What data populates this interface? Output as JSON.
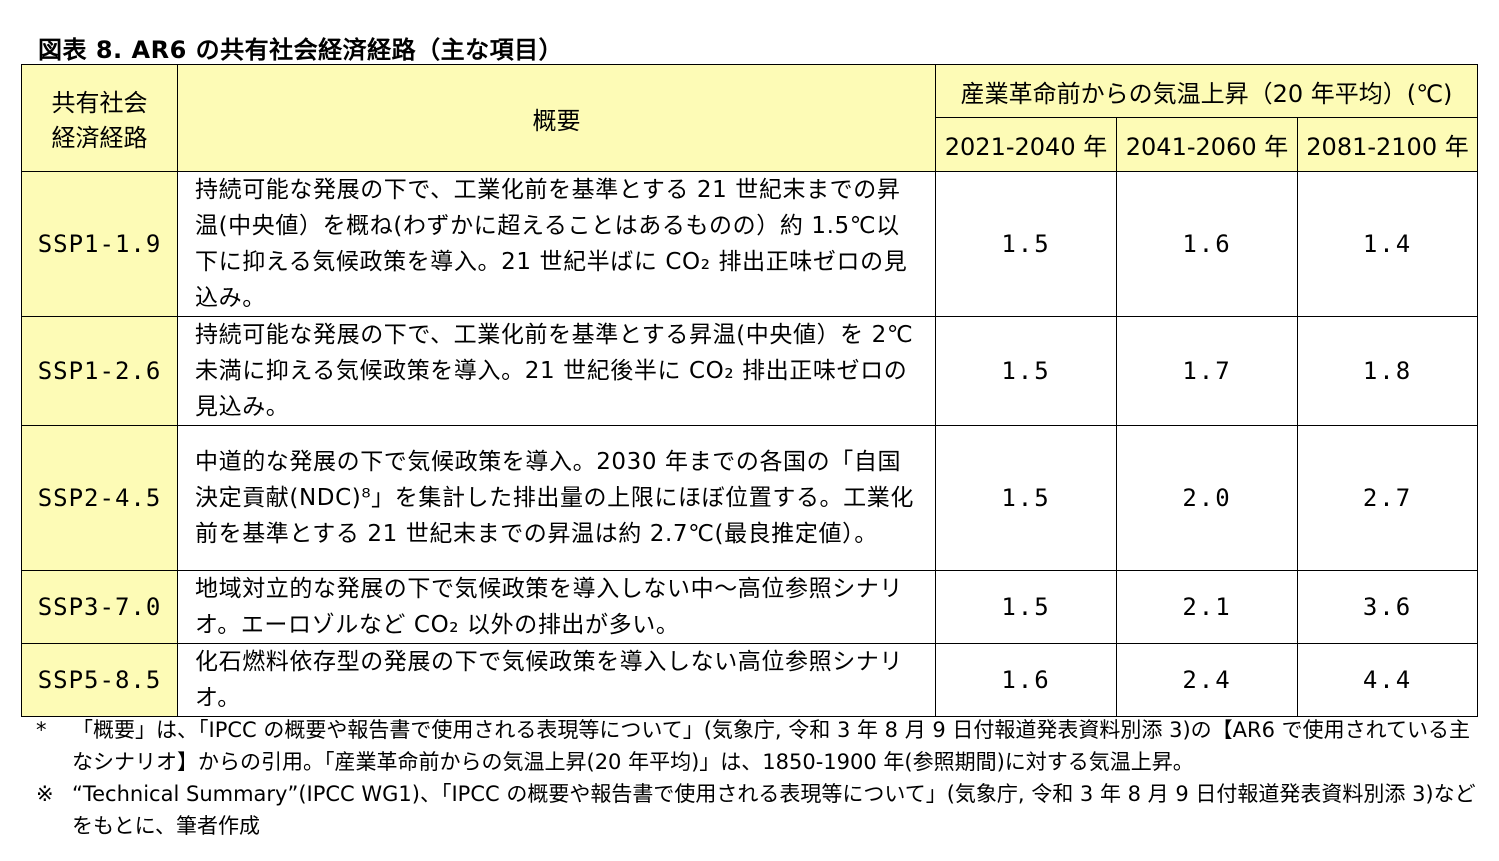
{
  "title": "図表 8. AR6 の共有社会経済経路（主な項目）",
  "header": {
    "scenario": "共有社会\n経済経路",
    "overview": "概要",
    "temp_group": "産業革命前からの気温上昇（20 年平均）(℃)",
    "periods": [
      "2021-2040 年",
      "2041-2060 年",
      "2081-2100 年"
    ]
  },
  "rows": [
    {
      "name": "SSP1-1.9",
      "description": "持続可能な発展の下で、工業化前を基準とする 21 世紀末までの昇温(中央値）を概ね(わずかに超えることはあるものの）約 1.5℃以下に抑える気候政策を導入。21 世紀半ばに CO₂ 排出正味ゼロの見込み。",
      "values": [
        "1.5",
        "1.6",
        "1.4"
      ]
    },
    {
      "name": "SSP1-2.6",
      "description": "持続可能な発展の下で、工業化前を基準とする昇温(中央値）を 2℃未満に抑える気候政策を導入。21 世紀後半に CO₂ 排出正味ゼロの見込み。",
      "values": [
        "1.5",
        "1.7",
        "1.8"
      ]
    },
    {
      "name": "SSP2-4.5",
      "description": "中道的な発展の下で気候政策を導入。2030 年までの各国の「自国決定貢献(NDC)⁸」を集計した排出量の上限にほぼ位置する。工業化前を基準とする 21 世紀末までの昇温は約 2.7℃(最良推定値）。",
      "values": [
        "1.5",
        "2.0",
        "2.7"
      ]
    },
    {
      "name": "SSP3-7.0",
      "description": "地域対立的な発展の下で気候政策を導入しない中～高位参照シナリオ。エーロゾルなど CO₂ 以外の排出が多い。",
      "values": [
        "1.5",
        "2.1",
        "3.6"
      ]
    },
    {
      "name": "SSP5-8.5",
      "description": "化石燃料依存型の発展の下で気候政策を導入しない高位参照シナリオ。",
      "values": [
        "1.6",
        "2.4",
        "4.4"
      ]
    }
  ],
  "notes": [
    {
      "mark": "*",
      "text": "「概要」は、「IPCC の概要や報告書で使用される表現等について」(気象庁, 令和 3 年 8 月 9 日付報道発表資料別添 3)の【AR6 で使用されている主なシナリオ】からの引用。「産業革命前からの気温上昇(20 年平均)」は、1850-1900 年(参照期間)に対する気温上昇。"
    },
    {
      "mark": "※",
      "text": "“Technical Summary”(IPCC WG1)、「IPCC の概要や報告書で使用される表現等について」(気象庁, 令和 3 年 8 月 9 日付報道発表資料別添 3)などをもとに、筆者作成"
    }
  ],
  "colors": {
    "header_fill": "#fdfbb6",
    "border": "#000000"
  }
}
